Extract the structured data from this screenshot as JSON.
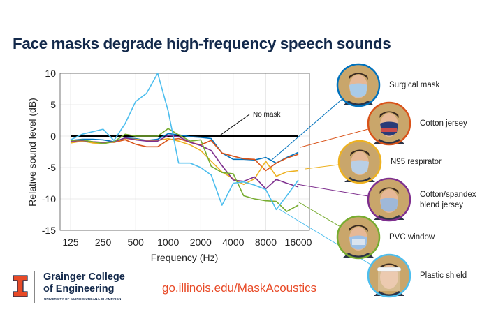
{
  "title": "Face masks degrade high-frequency speech sounds",
  "chart_data": {
    "type": "line",
    "title": "Face masks degrade high-frequency speech sounds",
    "xlabel": "Frequency (Hz)",
    "ylabel": "Relative sound level (dB)",
    "xscale": "log2",
    "xlim": [
      125,
      16000
    ],
    "ylim": [
      -15,
      10
    ],
    "xticks": [
      "125",
      "250",
      "500",
      "1000",
      "2000",
      "4000",
      "8000",
      "16000"
    ],
    "yticks": [
      "10",
      "5",
      "0",
      "-5",
      "-10",
      "-15"
    ],
    "grid": true,
    "x": [
      125,
      160,
      200,
      250,
      315,
      400,
      500,
      630,
      800,
      1000,
      1250,
      1600,
      2000,
      2500,
      3150,
      4000,
      5000,
      6300,
      8000,
      10000,
      12500,
      16000
    ],
    "series": [
      {
        "name": "No mask",
        "color": "#000000",
        "values": [
          0,
          0,
          0,
          0,
          0,
          0,
          0,
          0,
          0,
          0,
          0,
          0,
          0,
          0,
          0,
          0,
          0,
          0,
          0,
          0,
          0,
          0
        ]
      },
      {
        "name": "Surgical mask",
        "color": "#0072BD",
        "values": [
          -0.7,
          -0.5,
          -0.5,
          -0.6,
          -0.9,
          -0.3,
          -0.4,
          -0.7,
          -0.5,
          0.4,
          0.2,
          -0.1,
          -0.2,
          -0.4,
          -2.7,
          -3.7,
          -3.7,
          -3.8,
          -3.4,
          -4.3,
          -3.4,
          -2.6
        ]
      },
      {
        "name": "Cotton jersey",
        "color": "#D95319",
        "values": [
          -1,
          -0.8,
          -1,
          -1,
          -1,
          -0.6,
          -1.3,
          -1.7,
          -1.7,
          -0.6,
          -0.4,
          -1,
          -1.4,
          -0.7,
          -2.7,
          -3.2,
          -3.6,
          -3.7,
          -5.5,
          -4.3,
          -3.5,
          -2.9
        ]
      },
      {
        "name": "N95 respirator",
        "color": "#EDB120",
        "values": [
          -1.1,
          -0.8,
          -1.1,
          -1.2,
          -0.9,
          -0.4,
          -0.5,
          -0.7,
          -0.7,
          -0.4,
          -0.8,
          -1.4,
          -2.3,
          -4,
          -5.7,
          -6.8,
          -7.7,
          -6.8,
          -4,
          -6.4,
          -5.7,
          -5.5
        ]
      },
      {
        "name": "Cotton/spandex blend jersey",
        "color": "#7E2F8E",
        "values": [
          -0.8,
          -0.7,
          -0.9,
          -1,
          -0.9,
          -0.3,
          -0.6,
          -0.8,
          -0.8,
          0.1,
          -0.1,
          -1,
          -1.5,
          -2.3,
          -4.7,
          -7,
          -7.2,
          -6.5,
          -8.4,
          -6.9,
          -7.5,
          -8.1
        ]
      },
      {
        "name": "PVC window",
        "color": "#77AC30",
        "values": [
          -0.7,
          -0.6,
          -0.9,
          -1.2,
          -0.9,
          0.3,
          0,
          0,
          0,
          1.2,
          0.2,
          -0.8,
          -0.6,
          -4.8,
          -5.8,
          -6,
          -9.5,
          -10,
          -10.3,
          -10.4,
          -12,
          -11
        ]
      },
      {
        "name": "Plastic shield",
        "color": "#4DBEEE",
        "values": [
          -0.6,
          0.3,
          0.7,
          1.1,
          -0.7,
          2,
          5.5,
          6.8,
          10,
          4,
          -4.3,
          -4.3,
          -5,
          -6.2,
          -11,
          -7.5,
          -7.3,
          -7.8,
          -8.5,
          -11.7,
          -9.5,
          -7
        ]
      }
    ]
  },
  "annotation_no_mask": "No mask",
  "legend": [
    {
      "label": "Surgical mask",
      "color": "#0072BD",
      "mask": "#a9cbe8"
    },
    {
      "label": "Cotton jersey",
      "color": "#D95319",
      "mask": "#2a3b78"
    },
    {
      "label": "N95 respirator",
      "color": "#EDB120",
      "mask": "#b9cfe6"
    },
    {
      "label": "Cotton/spandex",
      "label2": "blend jersey",
      "color": "#7E2F8E",
      "mask": "#9fb8d8"
    },
    {
      "label": "PVC window",
      "color": "#77AC30",
      "mask": "#9ec0e4"
    },
    {
      "label": "Plastic shield",
      "color": "#4DBEEE",
      "mask": "#e8eef4"
    }
  ],
  "footer": {
    "college_line1": "Grainger College",
    "college_line2": "of Engineering",
    "university": "UNIVERSITY OF ILLINOIS URBANA-CHAMPAIGN",
    "url": "go.illinois.edu/MaskAcoustics",
    "logo_color": "#E84A27"
  }
}
